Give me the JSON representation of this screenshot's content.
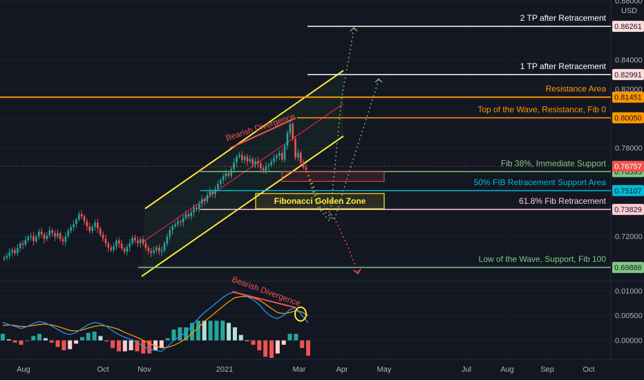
{
  "chart_data": {
    "type": "line",
    "title": "",
    "currency": "USD",
    "price_axis": {
      "ticks": [
        "0.88000",
        "0.84000",
        "0.82000",
        "0.80000",
        "0.78000",
        "0.74000",
        "0.72000",
        "0.70000"
      ],
      "ylim": [
        0.6905,
        0.8805
      ]
    },
    "macd_axis": {
      "ticks": [
        "0.01000",
        "0.00500",
        "0.00000"
      ],
      "ylim": [
        -0.0038,
        0.0115
      ]
    },
    "x_labels": [
      "Aug",
      "Oct",
      "Nov",
      "2021",
      "Mar",
      "Apr",
      "May",
      "Jul",
      "Aug",
      "Sep",
      "Oct"
    ],
    "levels": [
      {
        "name": "2 TP after Retracement",
        "value": 0.86261,
        "price": "0.86261",
        "color": "#ffffff",
        "tag_bg": "#ffdede",
        "tag_fg": "#131722"
      },
      {
        "name": "1 TP after Retracement",
        "value": 0.82991,
        "price": "0.82991",
        "color": "#ffffff",
        "tag_bg": "#ffdede",
        "tag_fg": "#131722"
      },
      {
        "name": "Resistance Area",
        "value": 0.81451,
        "price": "0.81451",
        "color": "#ff9800",
        "tag_bg": "#ff9800",
        "tag_fg": "#131722"
      },
      {
        "name": "Top of the Wave, Resistance, Fib 0",
        "value": 0.8005,
        "price": "0.80050",
        "color": "#ff9800",
        "tag_bg": "#ff9800",
        "tag_fg": "#131722"
      },
      {
        "name": "Fib 38%, Immediate Support",
        "value": 0.76395,
        "price": "0.76395",
        "color": "#81c784",
        "tag_bg": "#81c784",
        "tag_fg": "#131722"
      },
      {
        "name": "50% FIB Retracement Support Area",
        "value": 0.75107,
        "price": "0.75107",
        "color": "#00bcd4",
        "tag_bg": "#00bcd4",
        "tag_fg": "#131722"
      },
      {
        "name": "61.8% Fib Retracement",
        "value": 0.73829,
        "price": "0.73829",
        "color": "#ffcdd2",
        "tag_bg": "#ffcdd2",
        "tag_fg": "#131722"
      },
      {
        "name": "Low of the Wave, Support, Fib 100",
        "value": 0.69886,
        "price": "0.69886",
        "color": "#81c784",
        "tag_bg": "#81c784",
        "tag_fg": "#131722"
      }
    ],
    "last_price": {
      "value": 0.76757,
      "label": "0.76757",
      "color": "#ef5350"
    },
    "annotations": {
      "bearish_divergence_price": "Bearish Divergence",
      "bearish_divergence_macd": "Bearish Divergence",
      "golden_zone": "Fibonacci Golden Zone"
    },
    "candles_close": [
      0.7055,
      0.7068,
      0.7092,
      0.7108,
      0.7085,
      0.7121,
      0.7152,
      0.7143,
      0.7176,
      0.7195,
      0.7203,
      0.7168,
      0.7198,
      0.7232,
      0.7214,
      0.7182,
      0.7206,
      0.7241,
      0.7223,
      0.7198,
      0.7221,
      0.7182,
      0.7165,
      0.7201,
      0.7239,
      0.7262,
      0.7284,
      0.7314,
      0.7351,
      0.7336,
      0.7302,
      0.7268,
      0.7236,
      0.7265,
      0.7294,
      0.7253,
      0.7212,
      0.7185,
      0.7152,
      0.7124,
      0.7108,
      0.7131,
      0.7172,
      0.7152,
      0.7118,
      0.7096,
      0.7128,
      0.7154,
      0.7191,
      0.7172,
      0.7153,
      0.7181,
      0.7151,
      0.7122,
      0.7101,
      0.7089,
      0.7106,
      0.7124,
      0.7098,
      0.7106,
      0.7152,
      0.7198,
      0.7241,
      0.7268,
      0.7281,
      0.7302,
      0.7296,
      0.7324,
      0.7351,
      0.7336,
      0.7362,
      0.7394,
      0.7382,
      0.7421,
      0.7452,
      0.7438,
      0.7481,
      0.7505,
      0.7488,
      0.7522,
      0.7556,
      0.7582,
      0.7608,
      0.7628,
      0.7612,
      0.7656,
      0.7702,
      0.7741,
      0.7752,
      0.7718,
      0.7741,
      0.7709,
      0.7725,
      0.7688,
      0.7712,
      0.7696,
      0.7662,
      0.7648,
      0.7676,
      0.7684,
      0.7706,
      0.7732,
      0.7748,
      0.7766,
      0.7721,
      0.7813,
      0.7902,
      0.7962,
      0.7862,
      0.7736,
      0.7768,
      0.7701,
      0.7668,
      0.7652
    ],
    "macd": {
      "macd_line": [
        0.0036,
        0.0032,
        0.0028,
        0.0024,
        0.0028,
        0.0034,
        0.0038,
        0.0035,
        0.0029,
        0.0022,
        0.0015,
        0.0012,
        0.0016,
        0.0024,
        0.0032,
        0.0036,
        0.0034,
        0.0028,
        0.0019,
        0.0012,
        0.0006,
        0.0002,
        -0.0004,
        -0.0012,
        -0.0018,
        -0.002,
        -0.0022,
        -0.0012,
        0.0,
        0.0008,
        0.0016,
        0.003,
        0.0044,
        0.0056,
        0.0066,
        0.0076,
        0.0086,
        0.0094,
        0.0098,
        0.0093,
        0.0088,
        0.0082,
        0.0072,
        0.0058,
        0.0048,
        0.0044,
        0.005,
        0.0062,
        0.0066,
        0.005,
        0.0036
      ],
      "signal_line": [
        0.003,
        0.0031,
        0.003,
        0.0028,
        0.0028,
        0.003,
        0.0032,
        0.0033,
        0.0031,
        0.0028,
        0.0024,
        0.002,
        0.0019,
        0.0021,
        0.0025,
        0.0028,
        0.003,
        0.0029,
        0.0026,
        0.0022,
        0.0016,
        0.0011,
        0.0006,
        0.0,
        -0.0006,
        -0.0011,
        -0.0015,
        -0.0014,
        -0.001,
        -0.0004,
        0.0004,
        0.0014,
        0.0026,
        0.0038,
        0.0048,
        0.0058,
        0.0068,
        0.0078,
        0.0086,
        0.0088,
        0.0088,
        0.0086,
        0.0081,
        0.0073,
        0.0064,
        0.0056,
        0.0054,
        0.0056,
        0.006,
        0.0057,
        0.005
      ]
    }
  }
}
